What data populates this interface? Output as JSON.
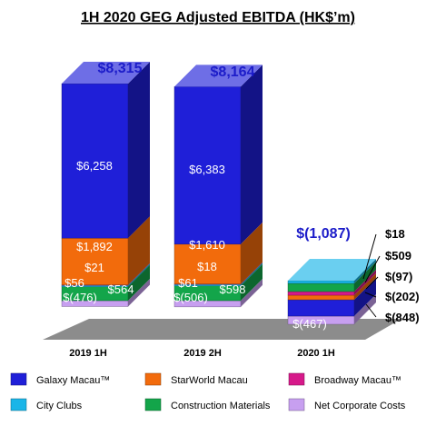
{
  "chart_data": {
    "type": "bar",
    "subtype": "stacked-3d",
    "title": "1H 2020 GEG Adjusted EBITDA (HK$’m)",
    "grid": false,
    "legend_position": "bottom",
    "categories": [
      "2019 1H",
      "2019 2H",
      "2020 1H"
    ],
    "totals": [
      "$8,315",
      "$8,164",
      "$(1,087)"
    ],
    "series": [
      {
        "name": "Galaxy Macau™",
        "color": "#1f1fd8",
        "values": [
          6258,
          6383,
          -848
        ]
      },
      {
        "name": "StarWorld Macau",
        "color": "#f26b0c",
        "values": [
          1892,
          1610,
          -202
        ]
      },
      {
        "name": "Broadway Macau™",
        "color": "#d6198a",
        "values": [
          21,
          18,
          -97
        ]
      },
      {
        "name": "City Clubs",
        "color": "#19b5e8",
        "values": [
          56,
          61,
          18
        ]
      },
      {
        "name": "Construction Materials",
        "color": "#13a54a",
        "values": [
          564,
          598,
          509
        ]
      },
      {
        "name": "Net Corporate Costs",
        "color": "#c79ff0",
        "values": [
          -476,
          -506,
          -467
        ]
      }
    ],
    "bar_labels": [
      [
        "$6,258",
        "$1,892",
        "$21",
        "$56",
        "$564",
        "$(476)"
      ],
      [
        "$6,383",
        "$1,610",
        "$18",
        "$61",
        "$598",
        "$(506)"
      ],
      [
        "$(467)"
      ]
    ],
    "callouts": [
      "$18",
      "$509",
      "$(97)",
      "$(202)",
      "$(848)"
    ]
  },
  "colors": {
    "title_text": "#000000",
    "total_text": "#1c1cc9",
    "floor": "#8c8c8c",
    "side_darken": 0.62,
    "top_lighten": 0.78
  }
}
